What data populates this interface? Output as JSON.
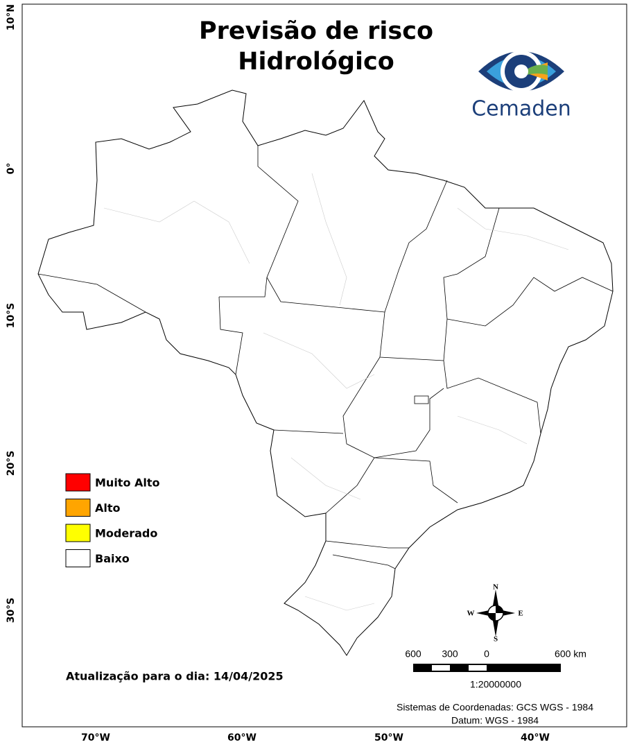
{
  "header": {
    "title_lines": [
      "Previsão de risco",
      "Hidrológico"
    ]
  },
  "logo": {
    "text": "Cemaden"
  },
  "legend": {
    "items": [
      {
        "label": "Muito Alto",
        "color": "#ff0000"
      },
      {
        "label": "Alto",
        "color": "#ffa500"
      },
      {
        "label": "Moderado",
        "color": "#ffff00"
      },
      {
        "label": "Baixo",
        "color": "#ffffff"
      }
    ]
  },
  "update_note": "Atualização para o dia: 14/04/2025",
  "scale_bar": {
    "labels": [
      "600",
      "300",
      "0",
      "600 km"
    ],
    "ratio": "1:20000000"
  },
  "compass": {
    "n": "N",
    "s": "S",
    "e": "E",
    "w": "W"
  },
  "coordinates": [
    "Sistemas de Coordenadas: GCS WGS - 1984",
    "Datum: WGS - 1984"
  ],
  "axes": {
    "lat": [
      "10°N",
      "0°",
      "10°S",
      "20°S",
      "30°S"
    ],
    "lon": [
      "70°W",
      "60°W",
      "50°W",
      "40°W"
    ]
  }
}
